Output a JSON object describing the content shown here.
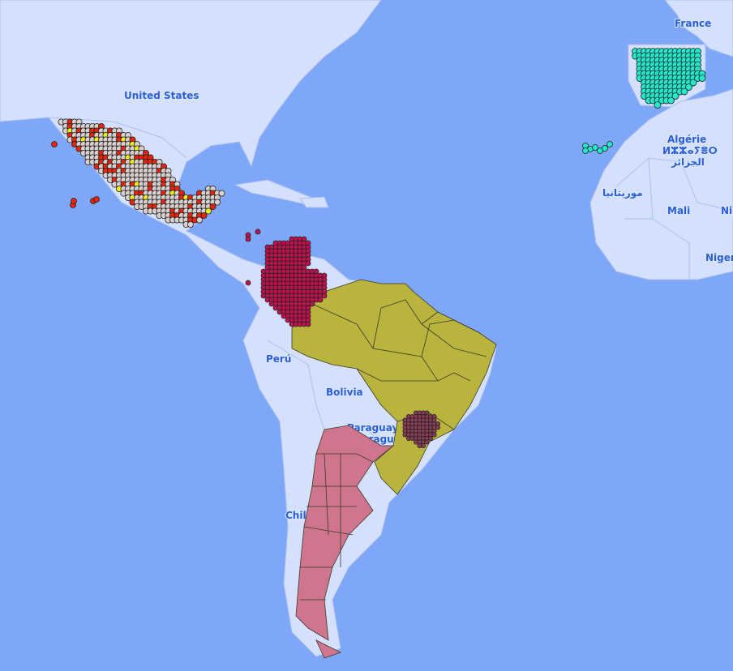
{
  "map": {
    "colors": {
      "ocean": "#7fa7f7",
      "land": "#d5e1fc",
      "border": "#a9bff0",
      "brazil_fill": "#b9b43e",
      "argentina_fill": "#d0758e",
      "colombia_dots": "#c0104e",
      "brazil_south_dots": "#8a3c58",
      "spain_dots": "#22e8cc",
      "mexico_dots_main": "#d9cfcf",
      "mexico_dots_secondary": "#e8240c",
      "mexico_dots_highlight": "#f0f010",
      "polygon_outline": "#3a3a2a"
    },
    "labels": {
      "united_states": "United States",
      "france": "France",
      "algeria_fr": "Algérie",
      "algeria_tfng": "ⵍⵣⵣⴰⵢⴻⵔ",
      "algeria_ar": "الجزائر",
      "mauritania_ar": "موريتانيا",
      "mali": "Mali",
      "niger": "Nig",
      "nigeria": "Nigeri",
      "peru": "Perú",
      "bolivia": "Bolivia",
      "paraguay_1": "Paraguay",
      "paraguay_2": "Paraguái",
      "chile": "Chil"
    },
    "layers": [
      {
        "name": "mexico-points",
        "style": "dots"
      },
      {
        "name": "colombia-points",
        "style": "dots"
      },
      {
        "name": "brazil-states",
        "style": "polygons"
      },
      {
        "name": "brazil-south-points",
        "style": "dots"
      },
      {
        "name": "argentina-provinces",
        "style": "polygons"
      },
      {
        "name": "spain-points",
        "style": "dots"
      }
    ]
  }
}
